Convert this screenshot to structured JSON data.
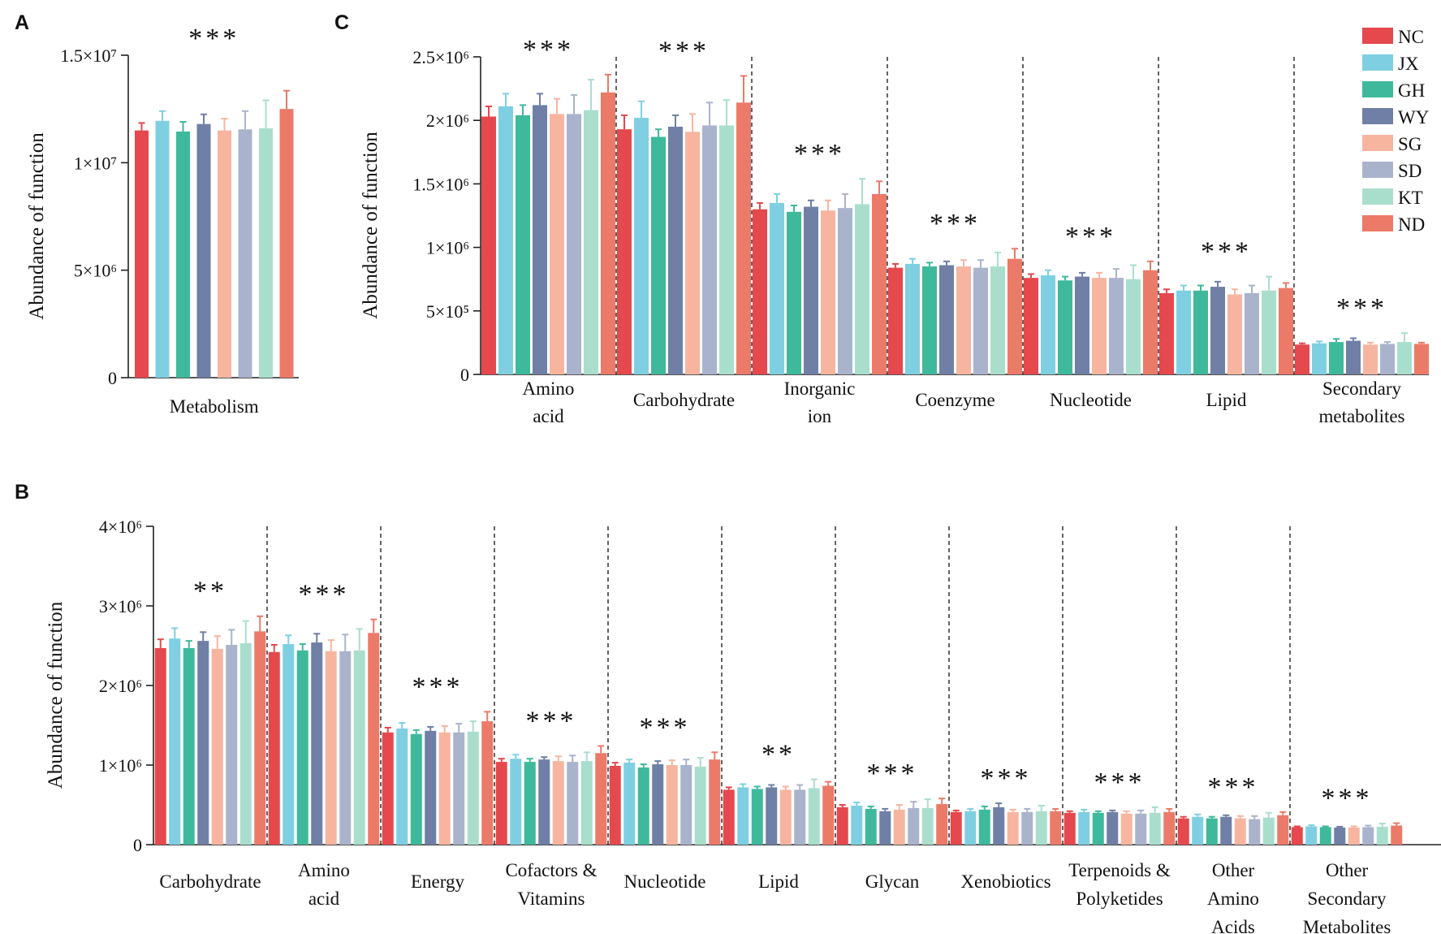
{
  "panels": {
    "a": {
      "label": "A"
    },
    "b": {
      "label": "B"
    },
    "c": {
      "label": "C"
    }
  },
  "groups": [
    "NC",
    "JX",
    "GH",
    "WY",
    "SG",
    "SD",
    "KT",
    "ND"
  ],
  "colors": {
    "NC": "#e5484d",
    "JX": "#7fcfe2",
    "GH": "#3fb99b",
    "WY": "#6f7fa6",
    "SG": "#f7b5a0",
    "SD": "#aab3cc",
    "KT": "#a9decd",
    "ND": "#ec7a68"
  },
  "chart_data": [
    {
      "id": "A",
      "type": "bar",
      "ylabel": "Abundance of function",
      "ylim": [
        0,
        15000000
      ],
      "ticks": [
        {
          "value": 0,
          "label": "0"
        },
        {
          "value": 5000000,
          "label": "5×10⁶"
        },
        {
          "value": 10000000,
          "label": "1×10⁷"
        },
        {
          "value": 15000000,
          "label": "1.5×10⁷"
        }
      ],
      "categories": [
        {
          "label": [
            "Metabolism"
          ],
          "sig": "***",
          "values": [
            11500000,
            11950000,
            11450000,
            11800000,
            11500000,
            11550000,
            11600000,
            12500000
          ],
          "errors": [
            350000,
            450000,
            450000,
            450000,
            550000,
            850000,
            1300000,
            850000
          ]
        }
      ]
    },
    {
      "id": "C",
      "type": "bar",
      "ylabel": "Abundance of function",
      "ylim": [
        0,
        2500000
      ],
      "ticks": [
        {
          "value": 0,
          "label": "0"
        },
        {
          "value": 500000,
          "label": "5×10⁵"
        },
        {
          "value": 1000000,
          "label": "1×10⁶"
        },
        {
          "value": 1500000,
          "label": "1.5×10⁶"
        },
        {
          "value": 2000000,
          "label": "2×10⁶"
        },
        {
          "value": 2500000,
          "label": "2.5×10⁶"
        }
      ],
      "legend_position": "top-right",
      "categories": [
        {
          "label": [
            "Amino",
            "acid"
          ],
          "sig": "***",
          "values": [
            2030000,
            2110000,
            2040000,
            2120000,
            2050000,
            2050000,
            2080000,
            2220000
          ],
          "errors": [
            80000,
            100000,
            80000,
            90000,
            120000,
            150000,
            240000,
            140000
          ]
        },
        {
          "label": [
            "Carbohydrate"
          ],
          "sig": "***",
          "values": [
            1930000,
            2020000,
            1870000,
            1950000,
            1910000,
            1960000,
            1960000,
            2140000
          ],
          "errors": [
            110000,
            130000,
            60000,
            90000,
            140000,
            180000,
            200000,
            210000
          ]
        },
        {
          "label": [
            "Inorganic",
            "ion"
          ],
          "sig": "***",
          "values": [
            1300000,
            1350000,
            1280000,
            1320000,
            1290000,
            1310000,
            1340000,
            1420000
          ],
          "errors": [
            50000,
            70000,
            50000,
            50000,
            80000,
            110000,
            200000,
            100000
          ]
        },
        {
          "label": [
            "Coenzyme"
          ],
          "sig": "***",
          "values": [
            840000,
            870000,
            850000,
            860000,
            850000,
            840000,
            850000,
            910000
          ],
          "errors": [
            30000,
            40000,
            30000,
            30000,
            50000,
            60000,
            110000,
            80000
          ]
        },
        {
          "label": [
            "Nucleotide"
          ],
          "sig": "***",
          "values": [
            760000,
            780000,
            740000,
            770000,
            760000,
            760000,
            750000,
            820000
          ],
          "errors": [
            30000,
            40000,
            30000,
            30000,
            40000,
            70000,
            110000,
            70000
          ]
        },
        {
          "label": [
            "Lipid"
          ],
          "sig": "***",
          "values": [
            640000,
            660000,
            660000,
            690000,
            630000,
            640000,
            660000,
            680000
          ],
          "errors": [
            30000,
            40000,
            40000,
            40000,
            40000,
            60000,
            110000,
            40000
          ]
        },
        {
          "label": [
            "Secondary",
            "metabolites"
          ],
          "sig": "***",
          "values": [
            235000,
            245000,
            255000,
            265000,
            235000,
            240000,
            255000,
            240000
          ],
          "errors": [
            10000,
            15000,
            25000,
            20000,
            15000,
            15000,
            70000,
            10000
          ]
        }
      ]
    },
    {
      "id": "B",
      "type": "bar",
      "ylabel": "Abundance of function",
      "ylim": [
        0,
        4000000
      ],
      "ticks": [
        {
          "value": 0,
          "label": "0"
        },
        {
          "value": 1000000,
          "label": "1×10⁶"
        },
        {
          "value": 2000000,
          "label": "2×10⁶"
        },
        {
          "value": 3000000,
          "label": "3×10⁶"
        },
        {
          "value": 4000000,
          "label": "4×10⁶"
        }
      ],
      "categories": [
        {
          "label": [
            "Carbohydrate"
          ],
          "sig": "**",
          "values": [
            2470000,
            2590000,
            2470000,
            2560000,
            2460000,
            2510000,
            2530000,
            2680000
          ],
          "errors": [
            110000,
            130000,
            90000,
            110000,
            160000,
            190000,
            280000,
            190000
          ]
        },
        {
          "label": [
            "Amino",
            "acid"
          ],
          "sig": "***",
          "values": [
            2420000,
            2520000,
            2440000,
            2540000,
            2430000,
            2430000,
            2440000,
            2660000
          ],
          "errors": [
            90000,
            110000,
            80000,
            110000,
            140000,
            210000,
            270000,
            170000
          ]
        },
        {
          "label": [
            "Energy"
          ],
          "sig": "***",
          "values": [
            1410000,
            1460000,
            1390000,
            1430000,
            1410000,
            1410000,
            1420000,
            1550000
          ],
          "errors": [
            60000,
            70000,
            50000,
            50000,
            80000,
            110000,
            130000,
            120000
          ]
        },
        {
          "label": [
            "Cofactors &",
            "Vitamins"
          ],
          "sig": "***",
          "values": [
            1040000,
            1080000,
            1040000,
            1070000,
            1050000,
            1040000,
            1050000,
            1150000
          ],
          "errors": [
            40000,
            50000,
            40000,
            30000,
            60000,
            80000,
            110000,
            90000
          ]
        },
        {
          "label": [
            "Nucleotide"
          ],
          "sig": "***",
          "values": [
            990000,
            1030000,
            970000,
            1010000,
            1000000,
            1000000,
            980000,
            1070000
          ],
          "errors": [
            40000,
            40000,
            40000,
            40000,
            60000,
            70000,
            110000,
            90000
          ]
        },
        {
          "label": [
            "Lipid"
          ],
          "sig": "**",
          "values": [
            690000,
            720000,
            700000,
            720000,
            690000,
            690000,
            710000,
            740000
          ],
          "errors": [
            30000,
            40000,
            30000,
            30000,
            40000,
            60000,
            110000,
            50000
          ]
        },
        {
          "label": [
            "Glycan"
          ],
          "sig": "***",
          "values": [
            470000,
            490000,
            450000,
            420000,
            440000,
            460000,
            460000,
            510000
          ],
          "errors": [
            30000,
            40000,
            30000,
            30000,
            60000,
            80000,
            110000,
            70000
          ]
        },
        {
          "label": [
            "Xenobiotics"
          ],
          "sig": "***",
          "values": [
            410000,
            420000,
            440000,
            470000,
            410000,
            410000,
            420000,
            420000
          ],
          "errors": [
            20000,
            30000,
            40000,
            50000,
            30000,
            40000,
            70000,
            30000
          ]
        },
        {
          "label": [
            "Terpenoids &",
            "Polyketides"
          ],
          "sig": "***",
          "values": [
            400000,
            410000,
            400000,
            410000,
            390000,
            390000,
            400000,
            410000
          ],
          "errors": [
            20000,
            30000,
            20000,
            20000,
            30000,
            40000,
            70000,
            40000
          ]
        },
        {
          "label": [
            "Other",
            "Amino",
            "Acids"
          ],
          "sig": "***",
          "values": [
            330000,
            350000,
            330000,
            350000,
            330000,
            320000,
            340000,
            370000
          ],
          "errors": [
            20000,
            30000,
            20000,
            20000,
            30000,
            40000,
            60000,
            40000
          ]
        },
        {
          "label": [
            "Other",
            "Secondary",
            "Metabolites"
          ],
          "sig": "***",
          "values": [
            220000,
            230000,
            220000,
            215000,
            215000,
            220000,
            225000,
            240000
          ],
          "errors": [
            10000,
            15000,
            10000,
            10000,
            15000,
            20000,
            40000,
            30000
          ]
        }
      ]
    }
  ]
}
